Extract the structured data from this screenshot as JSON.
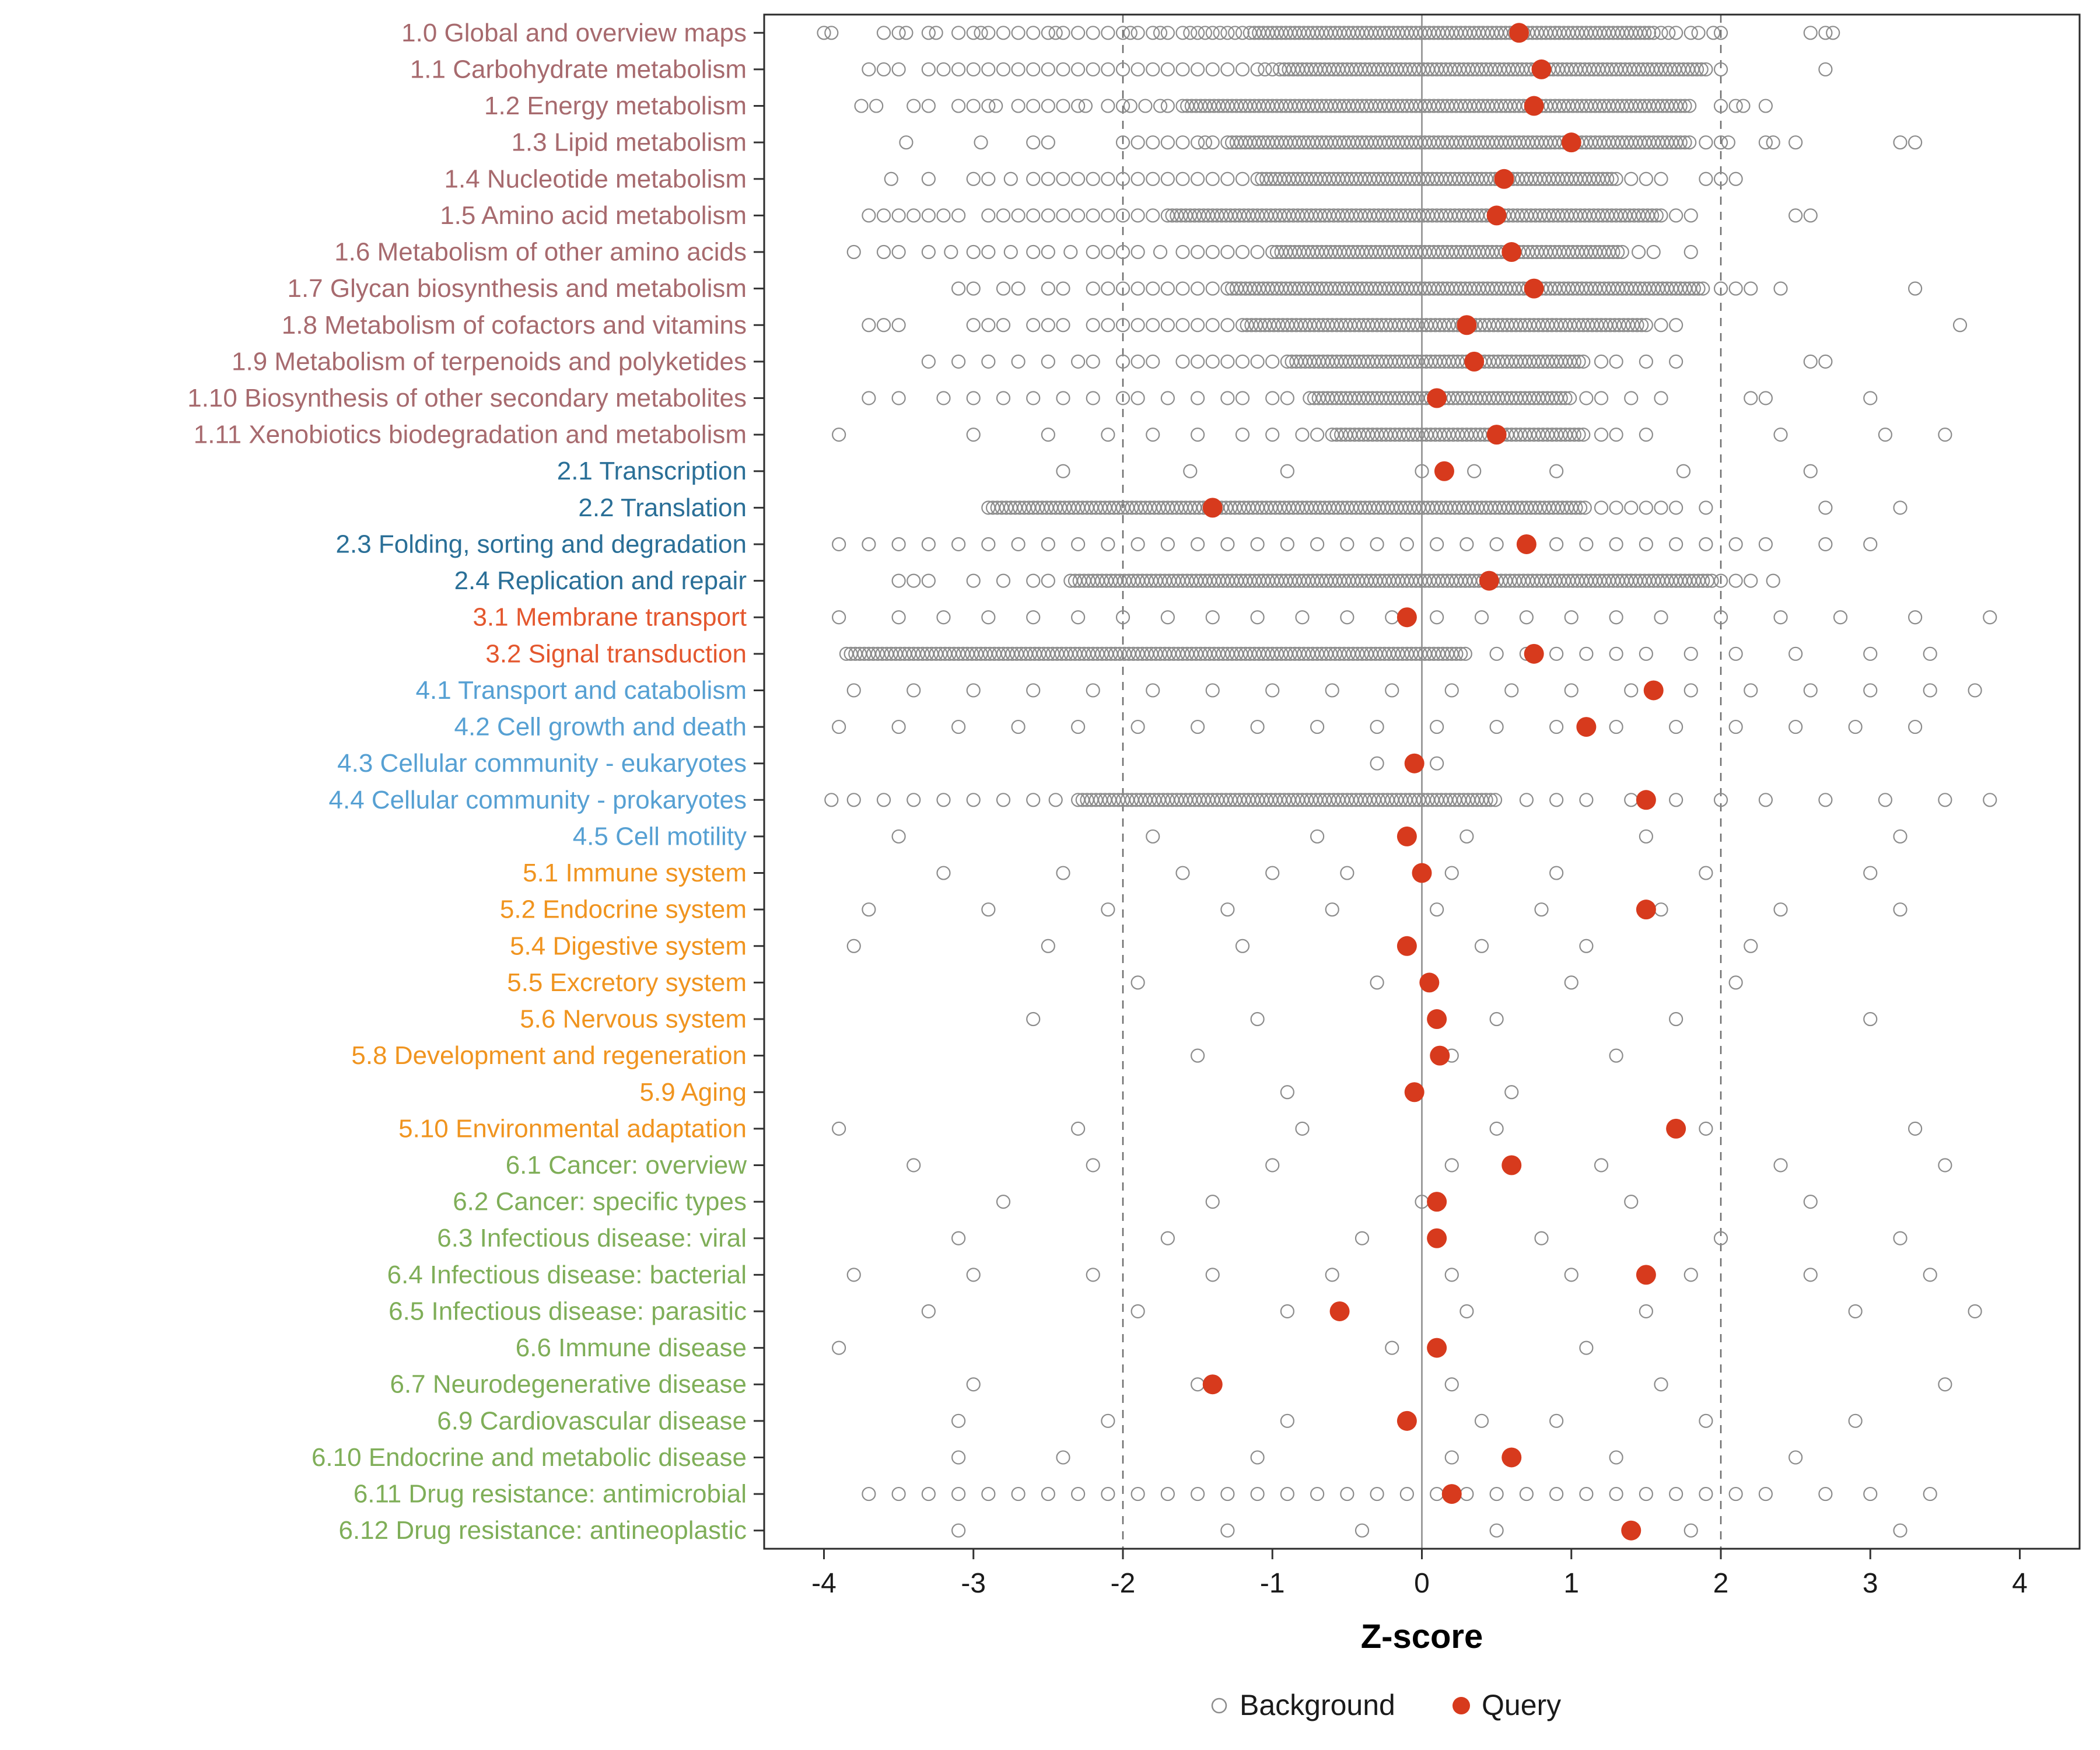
{
  "chart_data": {
    "type": "scatter",
    "title": "",
    "xlabel": "Z-score",
    "xlim": [
      -4.4,
      4.4
    ],
    "x_ticks": [
      -4,
      -3,
      -2,
      -1,
      0,
      1,
      2,
      3,
      4
    ],
    "reference_lines": {
      "solid": [
        0
      ],
      "dashed": [
        -2,
        2
      ]
    },
    "grid": false,
    "legend_position": "bottom",
    "legend": [
      {
        "label": "Background",
        "type": "open"
      },
      {
        "label": "Query",
        "type": "filled"
      }
    ],
    "colors": {
      "query": "#D73A1D",
      "background_stroke": "#8C8C8C",
      "axis_text": "#1a1a1a",
      "panel_border": "#2b2b2b",
      "zero_line": "#8c8c8c",
      "dashed_line": "#6e6e6e",
      "groups": {
        "metabolism": "#A76A6E",
        "genetic_information_processing": "#2A6F97",
        "environmental_information_processing": "#E4572E",
        "cellular_processes": "#56A0D3",
        "organismal_systems": "#F0941F",
        "human_diseases": "#7FAE58"
      }
    },
    "band_step": 0.03,
    "rows": [
      {
        "label": "1.0 Global and overview maps",
        "group": "metabolism",
        "query": 0.65,
        "band": [
          -1.15,
          1.55
        ],
        "bg": [
          -4.0,
          -3.95,
          -3.6,
          -3.5,
          -3.45,
          -3.3,
          -3.25,
          -3.1,
          -3.0,
          -2.95,
          -2.9,
          -2.8,
          -2.7,
          -2.6,
          -2.5,
          -2.45,
          -2.4,
          -2.3,
          -2.2,
          -2.1,
          -2.0,
          -1.95,
          -1.9,
          -1.8,
          -1.75,
          -1.7,
          -1.6,
          -1.55,
          -1.5,
          -1.45,
          -1.4,
          -1.35,
          -1.3,
          -1.25,
          -1.2,
          1.6,
          1.65,
          1.7,
          1.8,
          1.85,
          1.95,
          2.0,
          2.6,
          2.7,
          2.75
        ]
      },
      {
        "label": "1.1 Carbohydrate metabolism",
        "group": "metabolism",
        "query": 0.8,
        "band": [
          -0.95,
          1.9
        ],
        "bg": [
          -3.7,
          -3.6,
          -3.5,
          -3.3,
          -3.2,
          -3.1,
          -3.0,
          -2.9,
          -2.8,
          -2.7,
          -2.6,
          -2.5,
          -2.4,
          -2.3,
          -2.2,
          -2.1,
          -2.0,
          -1.9,
          -1.8,
          -1.7,
          -1.6,
          -1.5,
          -1.4,
          -1.3,
          -1.2,
          -1.1,
          -1.05,
          -1.0,
          2.0,
          2.7
        ]
      },
      {
        "label": "1.2 Energy metabolism",
        "group": "metabolism",
        "query": 0.75,
        "band": [
          -1.6,
          1.8
        ],
        "bg": [
          -3.75,
          -3.65,
          -3.4,
          -3.3,
          -3.1,
          -3.0,
          -2.9,
          -2.85,
          -2.7,
          -2.6,
          -2.5,
          -2.4,
          -2.3,
          -2.25,
          -2.1,
          -2.0,
          -1.95,
          -1.85,
          -1.75,
          -1.7,
          2.0,
          2.1,
          2.15,
          2.3
        ]
      },
      {
        "label": "1.3 Lipid metabolism",
        "group": "metabolism",
        "query": 1.0,
        "band": [
          -1.3,
          1.8
        ],
        "bg": [
          -3.45,
          -2.95,
          -2.6,
          -2.5,
          -2.0,
          -1.9,
          -1.8,
          -1.7,
          -1.6,
          -1.5,
          -1.45,
          -1.4,
          1.9,
          2.0,
          2.05,
          2.3,
          2.35,
          2.5,
          3.2,
          3.3
        ]
      },
      {
        "label": "1.4 Nucleotide metabolism",
        "group": "metabolism",
        "query": 0.55,
        "band": [
          -1.1,
          1.3
        ],
        "bg": [
          -3.55,
          -3.3,
          -3.0,
          -2.9,
          -2.75,
          -2.6,
          -2.5,
          -2.4,
          -2.3,
          -2.2,
          -2.1,
          -2.0,
          -1.9,
          -1.8,
          -1.7,
          -1.6,
          -1.5,
          -1.4,
          -1.3,
          -1.2,
          1.4,
          1.5,
          1.6,
          1.9,
          2.0,
          2.1
        ]
      },
      {
        "label": "1.5 Amino acid metabolism",
        "group": "metabolism",
        "query": 0.5,
        "band": [
          -1.7,
          1.6
        ],
        "bg": [
          -3.7,
          -3.6,
          -3.5,
          -3.4,
          -3.3,
          -3.2,
          -3.1,
          -2.9,
          -2.8,
          -2.7,
          -2.6,
          -2.5,
          -2.4,
          -2.3,
          -2.2,
          -2.1,
          -2.0,
          -1.9,
          -1.8,
          1.7,
          1.8,
          2.5,
          2.6
        ]
      },
      {
        "label": "1.6 Metabolism of other amino acids",
        "group": "metabolism",
        "query": 0.6,
        "band": [
          -1.0,
          1.35
        ],
        "bg": [
          -3.8,
          -3.6,
          -3.5,
          -3.3,
          -3.15,
          -3.0,
          -2.9,
          -2.75,
          -2.6,
          -2.5,
          -2.35,
          -2.2,
          -2.1,
          -2.0,
          -1.9,
          -1.75,
          -1.6,
          -1.5,
          -1.4,
          -1.3,
          -1.2,
          -1.1,
          1.45,
          1.55,
          1.8
        ]
      },
      {
        "label": "1.7 Glycan biosynthesis and metabolism",
        "group": "metabolism",
        "query": 0.75,
        "band": [
          -1.3,
          1.9
        ],
        "bg": [
          -3.1,
          -3.0,
          -2.8,
          -2.7,
          -2.5,
          -2.4,
          -2.2,
          -2.1,
          -2.0,
          -1.9,
          -1.8,
          -1.7,
          -1.6,
          -1.5,
          -1.4,
          2.0,
          2.1,
          2.2,
          2.4,
          3.3
        ]
      },
      {
        "label": "1.8 Metabolism of cofactors and vitamins",
        "group": "metabolism",
        "query": 0.3,
        "band": [
          -1.2,
          1.5
        ],
        "bg": [
          -3.7,
          -3.6,
          -3.5,
          -3.0,
          -2.9,
          -2.8,
          -2.6,
          -2.5,
          -2.4,
          -2.2,
          -2.1,
          -2.0,
          -1.9,
          -1.8,
          -1.7,
          -1.6,
          -1.5,
          -1.4,
          -1.3,
          1.6,
          1.7,
          3.6
        ]
      },
      {
        "label": "1.9 Metabolism of terpenoids and polyketides",
        "group": "metabolism",
        "query": 0.35,
        "band": [
          -0.9,
          1.1
        ],
        "bg": [
          -3.3,
          -3.1,
          -2.9,
          -2.7,
          -2.5,
          -2.3,
          -2.2,
          -2.0,
          -1.9,
          -1.8,
          -1.6,
          -1.5,
          -1.4,
          -1.3,
          -1.2,
          -1.1,
          -1.0,
          1.2,
          1.3,
          1.5,
          1.7,
          2.6,
          2.7
        ]
      },
      {
        "label": "1.10 Biosynthesis of other secondary metabolites",
        "group": "metabolism",
        "query": 0.1,
        "band": [
          -0.75,
          1.0
        ],
        "bg": [
          -3.7,
          -3.5,
          -3.2,
          -3.0,
          -2.8,
          -2.6,
          -2.4,
          -2.2,
          -2.0,
          -1.9,
          -1.7,
          -1.5,
          -1.3,
          -1.2,
          -1.0,
          -0.9,
          1.1,
          1.2,
          1.4,
          1.6,
          2.2,
          2.3,
          3.0
        ]
      },
      {
        "label": "1.11 Xenobiotics biodegradation and metabolism",
        "group": "metabolism",
        "query": 0.5,
        "band": [
          -0.6,
          1.1
        ],
        "bg": [
          -3.9,
          -3.0,
          -2.5,
          -2.1,
          -1.8,
          -1.5,
          -1.2,
          -1.0,
          -0.8,
          -0.7,
          1.2,
          1.3,
          1.5,
          2.4,
          3.1,
          3.5
        ]
      },
      {
        "label": "2.1 Transcription",
        "group": "genetic_information_processing",
        "query": 0.15,
        "band": null,
        "bg": [
          -2.4,
          -1.55,
          -0.9,
          0.0,
          0.35,
          0.9,
          1.75,
          2.6
        ]
      },
      {
        "label": "2.2 Translation",
        "group": "genetic_information_processing",
        "query": -1.4,
        "band": [
          -2.9,
          1.1
        ],
        "bg": [
          1.2,
          1.3,
          1.4,
          1.5,
          1.6,
          1.7,
          1.9,
          2.7,
          3.2
        ]
      },
      {
        "label": "2.3 Folding, sorting and degradation",
        "group": "genetic_information_processing",
        "query": 0.7,
        "band": null,
        "bg": [
          -3.9,
          -3.7,
          -3.5,
          -3.3,
          -3.1,
          -2.9,
          -2.7,
          -2.5,
          -2.3,
          -2.1,
          -1.9,
          -1.7,
          -1.5,
          -1.3,
          -1.1,
          -0.9,
          -0.7,
          -0.5,
          -0.3,
          -0.1,
          0.1,
          0.3,
          0.5,
          0.7,
          0.9,
          1.1,
          1.3,
          1.5,
          1.7,
          1.9,
          2.1,
          2.3,
          2.7,
          3.0
        ]
      },
      {
        "label": "2.4 Replication and repair",
        "group": "genetic_information_processing",
        "query": 0.45,
        "band": [
          -2.35,
          1.95
        ],
        "bg": [
          -3.5,
          -3.4,
          -3.3,
          -3.0,
          -2.8,
          -2.6,
          -2.5,
          2.0,
          2.1,
          2.2,
          2.35
        ]
      },
      {
        "label": "3.1 Membrane transport",
        "group": "environmental_information_processing",
        "query": -0.1,
        "band": null,
        "bg": [
          -3.9,
          -3.5,
          -3.2,
          -2.9,
          -2.6,
          -2.3,
          -2.0,
          -1.7,
          -1.4,
          -1.1,
          -0.8,
          -0.5,
          -0.2,
          0.1,
          0.4,
          0.7,
          1.0,
          1.3,
          1.6,
          2.0,
          2.4,
          2.8,
          3.3,
          3.8
        ]
      },
      {
        "label": "3.2 Signal transduction",
        "group": "environmental_information_processing",
        "query": 0.75,
        "band": [
          -3.85,
          0.3
        ],
        "bg": [
          0.5,
          0.7,
          0.9,
          1.1,
          1.3,
          1.5,
          1.8,
          2.1,
          2.5,
          3.0,
          3.4
        ]
      },
      {
        "label": "4.1 Transport and catabolism",
        "group": "cellular_processes",
        "query": 1.55,
        "band": null,
        "bg": [
          -3.8,
          -3.4,
          -3.0,
          -2.6,
          -2.2,
          -1.8,
          -1.4,
          -1.0,
          -0.6,
          -0.2,
          0.2,
          0.6,
          1.0,
          1.4,
          1.8,
          2.2,
          2.6,
          3.0,
          3.4,
          3.7
        ]
      },
      {
        "label": "4.2 Cell growth and death",
        "group": "cellular_processes",
        "query": 1.1,
        "band": null,
        "bg": [
          -3.9,
          -3.5,
          -3.1,
          -2.7,
          -2.3,
          -1.9,
          -1.5,
          -1.1,
          -0.7,
          -0.3,
          0.1,
          0.5,
          0.9,
          1.3,
          1.7,
          2.1,
          2.5,
          2.9,
          3.3
        ]
      },
      {
        "label": "4.3 Cellular community - eukaryotes",
        "group": "cellular_processes",
        "query": -0.05,
        "band": null,
        "bg": [
          -0.3,
          0.1
        ]
      },
      {
        "label": "4.4 Cellular community - prokaryotes",
        "group": "cellular_processes",
        "query": 1.5,
        "band": [
          -2.3,
          0.5
        ],
        "bg": [
          -3.95,
          -3.8,
          -3.6,
          -3.4,
          -3.2,
          -3.0,
          -2.8,
          -2.6,
          -2.45,
          0.7,
          0.9,
          1.1,
          1.4,
          1.7,
          2.0,
          2.3,
          2.7,
          3.1,
          3.5,
          3.8
        ]
      },
      {
        "label": "4.5 Cell motility",
        "group": "cellular_processes",
        "query": -0.1,
        "band": null,
        "bg": [
          -3.5,
          -1.8,
          -0.7,
          0.3,
          1.5,
          3.2
        ]
      },
      {
        "label": "5.1 Immune system",
        "group": "organismal_systems",
        "query": 0.0,
        "band": null,
        "bg": [
          -3.2,
          -2.4,
          -1.6,
          -1.0,
          -0.5,
          0.2,
          0.9,
          1.9,
          3.0
        ]
      },
      {
        "label": "5.2 Endocrine system",
        "group": "organismal_systems",
        "query": 1.5,
        "band": null,
        "bg": [
          -3.7,
          -2.9,
          -2.1,
          -1.3,
          -0.6,
          0.1,
          0.8,
          1.6,
          2.4,
          3.2
        ]
      },
      {
        "label": "5.4 Digestive system",
        "group": "organismal_systems",
        "query": -0.1,
        "band": null,
        "bg": [
          -3.8,
          -2.5,
          -1.2,
          0.4,
          1.1,
          2.2
        ]
      },
      {
        "label": "5.5 Excretory system",
        "group": "organismal_systems",
        "query": 0.05,
        "band": null,
        "bg": [
          -1.9,
          -0.3,
          1.0,
          2.1
        ]
      },
      {
        "label": "5.6 Nervous system",
        "group": "organismal_systems",
        "query": 0.1,
        "band": null,
        "bg": [
          -2.6,
          -1.1,
          0.5,
          1.7,
          3.0
        ]
      },
      {
        "label": "5.8 Development and regeneration",
        "group": "organismal_systems",
        "query": 0.12,
        "band": null,
        "bg": [
          -1.5,
          0.2,
          1.3
        ]
      },
      {
        "label": "5.9 Aging",
        "group": "organismal_systems",
        "query": -0.05,
        "band": null,
        "bg": [
          -0.9,
          0.6
        ]
      },
      {
        "label": "5.10 Environmental adaptation",
        "group": "organismal_systems",
        "query": 1.7,
        "band": null,
        "bg": [
          -3.9,
          -2.3,
          -0.8,
          0.5,
          1.9,
          3.3
        ]
      },
      {
        "label": "6.1 Cancer: overview",
        "group": "human_diseases",
        "query": 0.6,
        "band": null,
        "bg": [
          -3.4,
          -2.2,
          -1.0,
          0.2,
          1.2,
          2.4,
          3.5
        ]
      },
      {
        "label": "6.2 Cancer: specific types",
        "group": "human_diseases",
        "query": 0.1,
        "band": null,
        "bg": [
          -2.8,
          -1.4,
          0.0,
          1.4,
          2.6
        ]
      },
      {
        "label": "6.3 Infectious disease: viral",
        "group": "human_diseases",
        "query": 0.1,
        "band": null,
        "bg": [
          -3.1,
          -1.7,
          -0.4,
          0.8,
          2.0,
          3.2
        ]
      },
      {
        "label": "6.4 Infectious disease: bacterial",
        "group": "human_diseases",
        "query": 1.5,
        "band": null,
        "bg": [
          -3.8,
          -3.0,
          -2.2,
          -1.4,
          -0.6,
          0.2,
          1.0,
          1.8,
          2.6,
          3.4
        ]
      },
      {
        "label": "6.5 Infectious disease: parasitic",
        "group": "human_diseases",
        "query": -0.55,
        "band": null,
        "bg": [
          -3.3,
          -1.9,
          -0.9,
          0.3,
          1.5,
          2.9,
          3.7
        ]
      },
      {
        "label": "6.6 Immune disease",
        "group": "human_diseases",
        "query": 0.1,
        "band": null,
        "bg": [
          -3.9,
          -0.2,
          1.1
        ]
      },
      {
        "label": "6.7 Neurodegenerative disease",
        "group": "human_diseases",
        "query": -1.4,
        "band": null,
        "bg": [
          -3.0,
          -1.5,
          0.2,
          1.6,
          3.5
        ]
      },
      {
        "label": "6.9 Cardiovascular disease",
        "group": "human_diseases",
        "query": -0.1,
        "band": null,
        "bg": [
          -3.1,
          -2.1,
          -0.9,
          0.4,
          0.9,
          1.9,
          2.9
        ]
      },
      {
        "label": "6.10 Endocrine and metabolic disease",
        "group": "human_diseases",
        "query": 0.6,
        "band": null,
        "bg": [
          -3.1,
          -2.4,
          -1.1,
          0.2,
          1.3,
          2.5
        ]
      },
      {
        "label": "6.11 Drug resistance: antimicrobial",
        "group": "human_diseases",
        "query": 0.2,
        "band": null,
        "bg": [
          -3.7,
          -3.5,
          -3.3,
          -3.1,
          -2.9,
          -2.7,
          -2.5,
          -2.3,
          -2.1,
          -1.9,
          -1.7,
          -1.5,
          -1.3,
          -1.1,
          -0.9,
          -0.7,
          -0.5,
          -0.3,
          -0.1,
          0.1,
          0.3,
          0.5,
          0.7,
          0.9,
          1.1,
          1.3,
          1.5,
          1.7,
          1.9,
          2.1,
          2.3,
          2.7,
          3.0,
          3.4
        ]
      },
      {
        "label": "6.12 Drug resistance: antineoplastic",
        "group": "human_diseases",
        "query": 1.4,
        "band": null,
        "bg": [
          -3.1,
          -1.3,
          -0.4,
          0.5,
          1.8,
          3.2
        ]
      }
    ]
  }
}
